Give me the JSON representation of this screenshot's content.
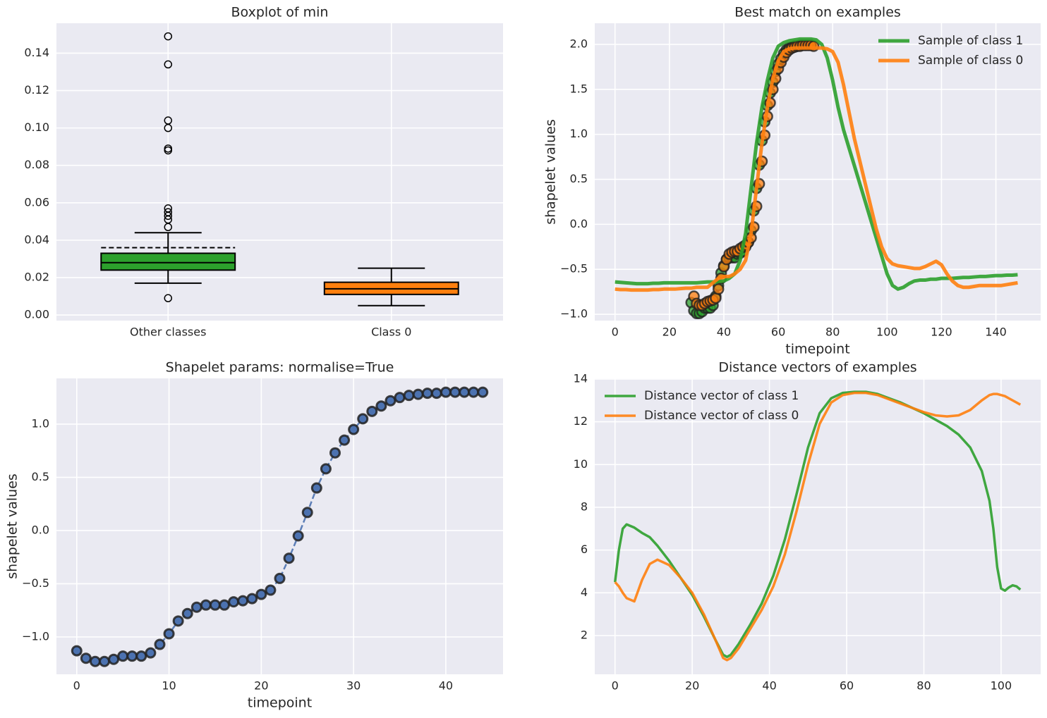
{
  "chart_data": [
    {
      "type": "box",
      "title": "Boxplot of min",
      "categories": [
        "Other classes",
        "Class 0"
      ],
      "ylim": [
        -0.003,
        0.156
      ],
      "yticks": [
        {
          "value": 0,
          "label": "0.00"
        },
        {
          "value": 0.02,
          "label": "0.02"
        },
        {
          "value": 0.04,
          "label": "0.04"
        },
        {
          "value": 0.06,
          "label": "0.06"
        },
        {
          "value": 0.08,
          "label": "0.08"
        },
        {
          "value": 0.1,
          "label": "0.10"
        },
        {
          "value": 0.12,
          "label": "0.12"
        },
        {
          "value": 0.14,
          "label": "0.14"
        }
      ],
      "grid": true,
      "boxes": [
        {
          "color": "#2ca02c",
          "whislo": 0.017,
          "q1": 0.024,
          "med": 0.028,
          "q3": 0.033,
          "whishi": 0.044,
          "mean": 0.036,
          "fliers": [
            0.009,
            0.047,
            0.051,
            0.053,
            0.055,
            0.057,
            0.088,
            0.089,
            0.1,
            0.104,
            0.134,
            0.149
          ]
        },
        {
          "color": "#ff7f0e",
          "whislo": 0.005,
          "q1": 0.011,
          "med": 0.014,
          "q3": 0.0175,
          "whishi": 0.025
        }
      ]
    },
    {
      "type": "line",
      "title": "Best match on examples",
      "xlabel": "timepoint",
      "ylabel": "shapelet values",
      "xlim": [
        -7.45,
        156.45
      ],
      "xticks": [
        0,
        20,
        40,
        60,
        80,
        100,
        120,
        140
      ],
      "ylim": [
        -1.07,
        2.235
      ],
      "yticks": [
        {
          "value": -1,
          "label": "−1.0"
        },
        {
          "value": -0.5,
          "label": "−0.5"
        },
        {
          "value": 0,
          "label": "0.0"
        },
        0.5,
        {
          "value": 1,
          "label": "1.0"
        },
        1.5,
        {
          "value": 2,
          "label": "2.0"
        }
      ],
      "grid": true,
      "legend": "upper right",
      "x": [
        0,
        2,
        4,
        6,
        8,
        10,
        12,
        14,
        16,
        18,
        20,
        22,
        24,
        26,
        28,
        30,
        32,
        34,
        36,
        38,
        40,
        42,
        44,
        46,
        48,
        50,
        52,
        54,
        56,
        58,
        60,
        62,
        64,
        66,
        68,
        70,
        72,
        74,
        76,
        78,
        80,
        82,
        84,
        86,
        88,
        90,
        92,
        94,
        96,
        98,
        100,
        102,
        104,
        106,
        108,
        110,
        112,
        114,
        116,
        118,
        120,
        122,
        124,
        126,
        128,
        130,
        132,
        134,
        136,
        138,
        140,
        142,
        144,
        146,
        148
      ],
      "series": [
        {
          "mode": "scatter",
          "color": "#2ca02c",
          "x": [
            28,
            29,
            30,
            31,
            32,
            33,
            34,
            35,
            36,
            37,
            38,
            39,
            40,
            41,
            42,
            43,
            44,
            45,
            46,
            47,
            48,
            49,
            50,
            51,
            52,
            53,
            54,
            55,
            56,
            57,
            58,
            59,
            60,
            61,
            62,
            63,
            64,
            65,
            66,
            67,
            68,
            69,
            70,
            71,
            72
          ],
          "values": [
            -0.87,
            -0.96,
            -0.99,
            -0.99,
            -0.97,
            -0.93,
            -0.93,
            -0.93,
            -0.9,
            -0.8,
            -0.68,
            -0.54,
            -0.46,
            -0.39,
            -0.37,
            -0.37,
            -0.37,
            -0.33,
            -0.32,
            -0.3,
            -0.25,
            -0.2,
            -0.07,
            0.15,
            0.4,
            0.66,
            0.93,
            1.14,
            1.32,
            1.46,
            1.58,
            1.7,
            1.78,
            1.84,
            1.9,
            1.94,
            1.96,
            1.97,
            1.98,
            1.98,
            1.99,
            1.99,
            1.99,
            1.99,
            1.99
          ]
        },
        {
          "mode": "scatter",
          "color": "#ff7f0e",
          "x": [
            29,
            30,
            31,
            32,
            33,
            34,
            35,
            36,
            37,
            38,
            39,
            40,
            41,
            42,
            43,
            44,
            45,
            46,
            47,
            48,
            49,
            50,
            51,
            52,
            53,
            54,
            55,
            56,
            57,
            58,
            59,
            60,
            61,
            62,
            63,
            64,
            65,
            66,
            67,
            68,
            69,
            70,
            71,
            72,
            73
          ],
          "values": [
            -0.8,
            -0.88,
            -0.9,
            -0.9,
            -0.88,
            -0.86,
            -0.85,
            -0.84,
            -0.82,
            -0.72,
            -0.6,
            -0.47,
            -0.39,
            -0.33,
            -0.31,
            -0.3,
            -0.3,
            -0.27,
            -0.25,
            -0.23,
            -0.2,
            -0.15,
            -0.03,
            0.2,
            0.45,
            0.7,
            0.99,
            1.2,
            1.35,
            1.5,
            1.62,
            1.73,
            1.8,
            1.86,
            1.91,
            1.94,
            1.96,
            1.97,
            1.98,
            1.98,
            1.99,
            1.99,
            1.99,
            1.99,
            1.98
          ]
        },
        {
          "mode": "line",
          "name": "Sample of class 1",
          "color": "#2ca02c",
          "linewidth": 5,
          "values": [
            -0.64,
            -0.645,
            -0.65,
            -0.655,
            -0.66,
            -0.66,
            -0.66,
            -0.655,
            -0.655,
            -0.65,
            -0.65,
            -0.65,
            -0.65,
            -0.65,
            -0.65,
            -0.65,
            -0.645,
            -0.64,
            -0.64,
            -0.635,
            -0.63,
            -0.6,
            -0.55,
            -0.4,
            -0.1,
            0.4,
            0.9,
            1.3,
            1.6,
            1.85,
            1.98,
            2.02,
            2.04,
            2.05,
            2.06,
            2.06,
            2.06,
            2.05,
            2.0,
            1.85,
            1.6,
            1.3,
            1.05,
            0.85,
            0.65,
            0.45,
            0.25,
            0.05,
            -0.15,
            -0.35,
            -0.55,
            -0.68,
            -0.72,
            -0.7,
            -0.66,
            -0.63,
            -0.62,
            -0.62,
            -0.61,
            -0.61,
            -0.6,
            -0.6,
            -0.6,
            -0.595,
            -0.59,
            -0.59,
            -0.585,
            -0.58,
            -0.58,
            -0.575,
            -0.57,
            -0.57,
            -0.565,
            -0.565,
            -0.56
          ]
        },
        {
          "mode": "line",
          "name": "Sample of class 0",
          "color": "#ff7f0e",
          "linewidth": 5,
          "values": [
            -0.72,
            -0.725,
            -0.725,
            -0.73,
            -0.73,
            -0.73,
            -0.73,
            -0.725,
            -0.725,
            -0.72,
            -0.72,
            -0.72,
            -0.715,
            -0.71,
            -0.71,
            -0.7,
            -0.7,
            -0.7,
            -0.65,
            -0.6,
            -0.58,
            -0.58,
            -0.55,
            -0.5,
            -0.4,
            -0.1,
            0.4,
            0.9,
            1.3,
            1.62,
            1.82,
            1.92,
            1.95,
            1.96,
            1.96,
            1.96,
            1.96,
            1.96,
            1.96,
            1.95,
            1.92,
            1.8,
            1.55,
            1.25,
            0.95,
            0.7,
            0.45,
            0.2,
            -0.05,
            -0.25,
            -0.38,
            -0.44,
            -0.46,
            -0.47,
            -0.48,
            -0.49,
            -0.49,
            -0.47,
            -0.44,
            -0.41,
            -0.45,
            -0.55,
            -0.63,
            -0.68,
            -0.7,
            -0.7,
            -0.69,
            -0.68,
            -0.68,
            -0.68,
            -0.68,
            -0.68,
            -0.67,
            -0.66,
            -0.65
          ]
        }
      ]
    },
    {
      "type": "line",
      "title": "Shapelet params: normalise=True",
      "xlabel": "timepoint",
      "ylabel": "shapelet values",
      "xlim": [
        -2.2,
        46.2
      ],
      "xticks": [
        0,
        10,
        20,
        30,
        40
      ],
      "ylim": [
        -1.351,
        1.43
      ],
      "yticks": [
        {
          "value": -1,
          "label": "−1.0"
        },
        {
          "value": -0.5,
          "label": "−0.5"
        },
        {
          "value": 0,
          "label": "0.0"
        },
        0.5,
        {
          "value": 1,
          "label": "1.0"
        }
      ],
      "grid": true,
      "x": [
        0,
        1,
        2,
        3,
        4,
        5,
        6,
        7,
        8,
        9,
        10,
        11,
        12,
        13,
        14,
        15,
        16,
        17,
        18,
        19,
        20,
        21,
        22,
        23,
        24,
        25,
        26,
        27,
        28,
        29,
        30,
        31,
        32,
        33,
        34,
        35,
        36,
        37,
        38,
        39,
        40,
        41,
        42,
        43,
        44
      ],
      "series": [
        {
          "mode": "line+markers",
          "dash": true,
          "color": "#4c72b0",
          "linewidth": 2.5,
          "values": [
            -1.13,
            -1.2,
            -1.23,
            -1.23,
            -1.21,
            -1.18,
            -1.18,
            -1.18,
            -1.15,
            -1.07,
            -0.97,
            -0.85,
            -0.78,
            -0.72,
            -0.7,
            -0.7,
            -0.7,
            -0.67,
            -0.66,
            -0.64,
            -0.6,
            -0.56,
            -0.45,
            -0.26,
            -0.05,
            0.17,
            0.4,
            0.58,
            0.73,
            0.85,
            0.95,
            1.05,
            1.12,
            1.17,
            1.22,
            1.25,
            1.27,
            1.28,
            1.29,
            1.29,
            1.3,
            1.3,
            1.3,
            1.3,
            1.3
          ]
        }
      ]
    },
    {
      "type": "line",
      "title": "Distance vectors of examples",
      "xlim": [
        -5.25,
        110.25
      ],
      "xticks": [
        0,
        20,
        40,
        60,
        80,
        100
      ],
      "ylim": [
        0.187,
        14.03
      ],
      "yticks": [
        2,
        4,
        6,
        8,
        10,
        12,
        14
      ],
      "grid": true,
      "legend": "upper left",
      "x": [
        0,
        1,
        2,
        3,
        5,
        7,
        9,
        11,
        14,
        17,
        20,
        23,
        26,
        28,
        29,
        30,
        32,
        35,
        38,
        41,
        44,
        47,
        50,
        53,
        56,
        59,
        62,
        65,
        68,
        71,
        74,
        77,
        80,
        83,
        86,
        89,
        92,
        95,
        97,
        98,
        99,
        100,
        101,
        102,
        103,
        104,
        105
      ],
      "series": [
        {
          "mode": "line",
          "name": "Distance vector of class 1",
          "color": "#2ca02c",
          "linewidth": 3.5,
          "values": [
            4.5,
            6.0,
            7.0,
            7.2,
            7.05,
            6.8,
            6.6,
            6.2,
            5.5,
            4.7,
            3.9,
            2.9,
            1.8,
            1.1,
            1.0,
            1.1,
            1.6,
            2.5,
            3.5,
            4.8,
            6.5,
            8.6,
            10.8,
            12.4,
            13.1,
            13.35,
            13.4,
            13.4,
            13.3,
            13.1,
            12.9,
            12.65,
            12.4,
            12.1,
            11.8,
            11.4,
            10.8,
            9.7,
            8.3,
            7.0,
            5.2,
            4.2,
            4.1,
            4.25,
            4.35,
            4.3,
            4.15
          ]
        },
        {
          "mode": "line",
          "name": "Distance vector of class 0",
          "color": "#ff7f0e",
          "linewidth": 3.5,
          "values": [
            4.5,
            4.3,
            4.0,
            3.75,
            3.6,
            4.6,
            5.35,
            5.55,
            5.3,
            4.7,
            4.0,
            3.0,
            1.8,
            0.95,
            0.85,
            0.95,
            1.4,
            2.3,
            3.2,
            4.3,
            5.8,
            7.8,
            10.0,
            11.9,
            12.9,
            13.25,
            13.35,
            13.35,
            13.25,
            13.05,
            12.85,
            12.65,
            12.45,
            12.3,
            12.25,
            12.3,
            12.55,
            13.0,
            13.25,
            13.3,
            13.3,
            13.25,
            13.2,
            13.1,
            13.0,
            12.9,
            12.8
          ]
        }
      ]
    }
  ]
}
